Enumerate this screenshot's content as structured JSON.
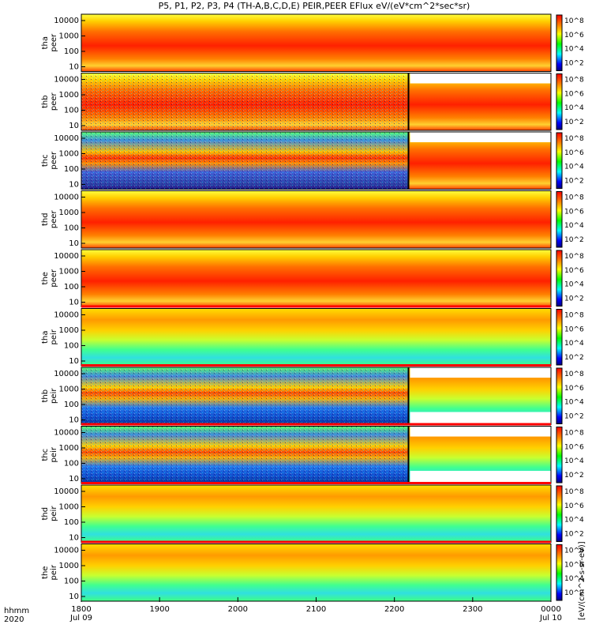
{
  "title": "P5, P1, P2, P3, P4 (TH-A,B,C,D,E) PEIR,PEER EFlux eV/(eV*cm^2*sec*sr)",
  "footer": {
    "line1": "hhmm",
    "line2": "2020"
  },
  "colorbar_unit": "[eV/(cm^2-s-sr-eV)]",
  "colors": {
    "high": "#ff0000",
    "mid": "#ffff00",
    "low": "#00ffff",
    "floor": "#000080",
    "fill": "#ffffff"
  },
  "chart_data": {
    "type": "heatmap",
    "x_ticks": [
      {
        "x": 1800,
        "label": "1800",
        "sub": "Jul 09"
      },
      {
        "x": 1900,
        "label": "1900",
        "sub": ""
      },
      {
        "x": 2000,
        "label": "2000",
        "sub": ""
      },
      {
        "x": 2100,
        "label": "2100",
        "sub": ""
      },
      {
        "x": 2200,
        "label": "2200",
        "sub": ""
      },
      {
        "x": 2300,
        "label": "2300",
        "sub": ""
      },
      {
        "x": 2400,
        "label": "0000",
        "sub": "Jul 10"
      }
    ],
    "x_range": [
      1800,
      2400
    ],
    "y_scale": "log",
    "y_ticks": [
      "10",
      "100",
      "1000",
      "10000"
    ],
    "colorbar_ticks": [
      "10^2",
      "10^4",
      "10^6",
      "10^8"
    ],
    "panels": [
      {
        "label": "tha\npeer",
        "species": "electron",
        "gap_after": null,
        "band": "high"
      },
      {
        "label": "thb\npeer",
        "species": "electron",
        "gap_after": 2218,
        "band": "high"
      },
      {
        "label": "thc\npeer",
        "species": "electron",
        "gap_after": 2218,
        "band": "high"
      },
      {
        "label": "thd\npeer",
        "species": "electron",
        "gap_after": null,
        "band": "high"
      },
      {
        "label": "the\npeer",
        "species": "electron",
        "gap_after": null,
        "band": "high"
      },
      {
        "label": "tha\npeir",
        "species": "ion",
        "gap_after": null,
        "band": "mid"
      },
      {
        "label": "thb\npeir",
        "species": "ion",
        "gap_after": 2218,
        "band": "mid"
      },
      {
        "label": "thc\npeir",
        "species": "ion",
        "gap_after": 2218,
        "band": "mid"
      },
      {
        "label": "thd\npeir",
        "species": "ion",
        "gap_after": null,
        "band": "mid"
      },
      {
        "label": "the\npeir",
        "species": "ion",
        "gap_after": null,
        "band": "mid"
      }
    ]
  }
}
